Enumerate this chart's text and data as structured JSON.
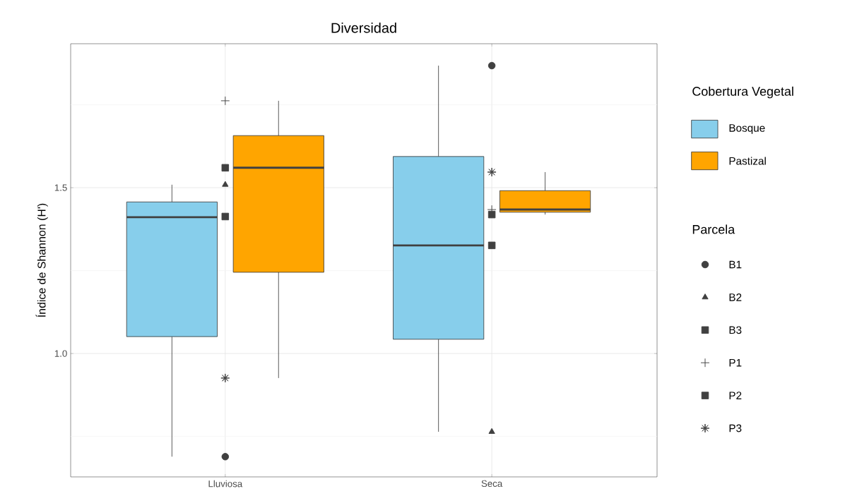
{
  "chart_data": {
    "type": "box",
    "title": "Diversidad",
    "ylabel": "Índice de Shannon (H')",
    "legend_title": "Cobertura Vegetal",
    "annotations": [
      "Parcela"
    ],
    "categories": [
      "Lluviosa",
      "Seca"
    ],
    "ylim": [
      0.628,
      1.934
    ],
    "yticks": [
      {
        "value": 0.75,
        "label": null
      },
      {
        "value": 1,
        "label": "1.0"
      },
      {
        "value": 1.25,
        "label": null
      },
      {
        "value": 1.5,
        "label": "1.5"
      },
      {
        "value": 1.75,
        "label": null
      }
    ],
    "grid": true,
    "legend": "right",
    "series": [
      {
        "name": "Bosque",
        "color": "#87ceeb",
        "boxes": [
          {
            "low": 0.689,
            "q1": 1.051,
            "median": 1.411,
            "q3": 1.457,
            "high": 1.509
          },
          {
            "low": 0.764,
            "q1": 1.043,
            "median": 1.326,
            "q3": 1.594,
            "high": 1.868
          }
        ]
      },
      {
        "name": "Pastizal",
        "color": "#ffa500",
        "boxes": [
          {
            "low": 0.926,
            "q1": 1.245,
            "median": 1.56,
            "q3": 1.657,
            "high": 1.762
          },
          {
            "low": 1.419,
            "q1": 1.426,
            "median": 1.434,
            "q3": 1.491,
            "high": 1.547
          }
        ]
      },
      {
        "name": "B1",
        "type": "scatter",
        "color": "#404040",
        "marker": "circle",
        "x": [
          "Lluviosa",
          "Seca"
        ],
        "values": [
          0.689,
          1.868
        ]
      },
      {
        "name": "B2",
        "type": "scatter",
        "color": "#404040",
        "marker": "triangle",
        "x": [
          "Lluviosa",
          "Seca"
        ],
        "values": [
          1.509,
          0.764
        ]
      },
      {
        "name": "B3",
        "type": "scatter",
        "color": "#404040",
        "marker": "square",
        "x": [
          "Lluviosa",
          "Seca"
        ],
        "values": [
          1.413,
          1.326
        ]
      },
      {
        "name": "P1",
        "type": "scatter",
        "color": "#404040",
        "marker": "cross",
        "x": [
          "Lluviosa",
          "Seca"
        ],
        "values": [
          1.762,
          1.434
        ]
      },
      {
        "name": "P2",
        "type": "scatter",
        "color": "#404040",
        "marker": "square",
        "x": [
          "Lluviosa",
          "Seca"
        ],
        "values": [
          1.56,
          1.419
        ]
      },
      {
        "name": "P3",
        "type": "scatter",
        "color": "#404040",
        "marker": "star",
        "x": [
          "Lluviosa",
          "Seca"
        ],
        "values": [
          0.926,
          1.547
        ]
      }
    ]
  }
}
